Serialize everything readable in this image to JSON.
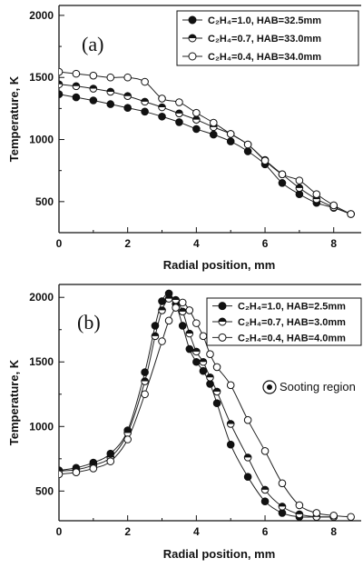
{
  "chart_data": [
    {
      "type": "line",
      "panel_label": "(a)",
      "xlabel": "Radial position, mm",
      "ylabel": "Temperature, K",
      "xlim": [
        0,
        8.8
      ],
      "ylim": [
        250,
        2080
      ],
      "xticks": [
        "0",
        "2",
        "4",
        "6",
        "8"
      ],
      "yticks": [
        "500",
        "1000",
        "1500",
        "2000"
      ],
      "legend_position": "top-right",
      "series": [
        {
          "name": "C₂H₄=1.0, HAB=32.5mm",
          "marker": "filled",
          "x": [
            0,
            0.5,
            1,
            1.5,
            2,
            2.5,
            3,
            3.5,
            4,
            4.5,
            5,
            5.5,
            6,
            6.5,
            7,
            7.5,
            8,
            8.5
          ],
          "y": [
            1365,
            1340,
            1315,
            1285,
            1255,
            1225,
            1185,
            1140,
            1085,
            1040,
            985,
            905,
            800,
            650,
            560,
            490,
            450,
            400
          ]
        },
        {
          "name": "C₂H₄=0.7, HAB=33.0mm",
          "marker": "half",
          "x": [
            0,
            0.5,
            1,
            1.5,
            2,
            2.5,
            3,
            3.5,
            4,
            4.5,
            5,
            5.5,
            6,
            6.5,
            7,
            7.5,
            8,
            8.5
          ],
          "y": [
            1445,
            1430,
            1410,
            1385,
            1350,
            1305,
            1260,
            1210,
            1160,
            1100,
            1045,
            960,
            835,
            720,
            610,
            520,
            455,
            400
          ]
        },
        {
          "name": "C₂H₄=0.4, HAB=34.0mm",
          "marker": "open",
          "x": [
            0,
            0.5,
            1,
            1.5,
            2,
            2.5,
            3,
            3.5,
            4,
            4.5,
            5,
            5.5,
            6,
            6.5,
            7,
            7.5,
            8,
            8.5
          ],
          "y": [
            1545,
            1530,
            1515,
            1500,
            1500,
            1465,
            1330,
            1300,
            1215,
            1135,
            1045,
            960,
            830,
            720,
            670,
            560,
            470,
            400
          ]
        }
      ]
    },
    {
      "type": "line",
      "panel_label": "(b)",
      "xlabel": "Radial position, mm",
      "ylabel": "Temperature, K",
      "annotation": "Sooting region",
      "xlim": [
        0,
        8.8
      ],
      "ylim": [
        270,
        2100
      ],
      "xticks": [
        "0",
        "2",
        "4",
        "6",
        "8"
      ],
      "yticks": [
        "500",
        "1000",
        "1500",
        "2000"
      ],
      "legend_position": "top-right",
      "series": [
        {
          "name": "C₂H₄=1.0, HAB=2.5mm",
          "marker": "filled",
          "x": [
            0,
            0.5,
            1,
            1.5,
            2,
            2.5,
            2.8,
            3.0,
            3.2,
            3.4,
            3.6,
            3.8,
            4.0,
            4.2,
            4.4,
            4.6,
            5.0,
            5.5,
            6.0,
            6.5,
            7.0,
            7.5,
            8.0
          ],
          "y": [
            660,
            680,
            720,
            790,
            970,
            1420,
            1780,
            1970,
            2030,
            1950,
            1780,
            1600,
            1500,
            1430,
            1330,
            1180,
            860,
            610,
            420,
            330,
            300,
            300,
            300
          ]
        },
        {
          "name": "C₂H₄=0.7, HAB=3.0mm",
          "marker": "half",
          "x": [
            0,
            0.5,
            1,
            1.5,
            2,
            2.5,
            2.8,
            3.0,
            3.2,
            3.4,
            3.6,
            3.8,
            4.0,
            4.2,
            4.4,
            4.6,
            5.0,
            5.5,
            6.0,
            6.5,
            7.0,
            7.5,
            8.0
          ],
          "y": [
            655,
            665,
            700,
            760,
            950,
            1350,
            1700,
            1900,
            1990,
            1980,
            1890,
            1720,
            1580,
            1500,
            1380,
            1270,
            1020,
            760,
            510,
            380,
            320,
            300,
            300
          ]
        },
        {
          "name": "C₂H₄=0.4, HAB=4.0mm",
          "marker": "open",
          "x": [
            0,
            0.5,
            1,
            1.5,
            2,
            2.5,
            3.0,
            3.2,
            3.4,
            3.6,
            3.8,
            4.0,
            4.2,
            4.4,
            4.6,
            5.0,
            5.5,
            6.0,
            6.5,
            7.0,
            7.5,
            8.0,
            8.5
          ],
          "y": [
            630,
            645,
            675,
            730,
            900,
            1250,
            1660,
            1820,
            1920,
            1960,
            1900,
            1800,
            1700,
            1560,
            1460,
            1320,
            1050,
            810,
            560,
            390,
            330,
            310,
            300
          ]
        }
      ]
    }
  ]
}
